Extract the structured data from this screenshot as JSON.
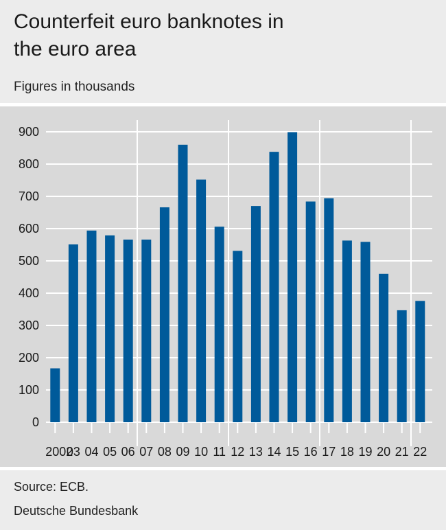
{
  "header": {
    "title_line1": "Counterfeit euro banknotes in",
    "title_line2": "the euro area",
    "subtitle": "Figures in thousands"
  },
  "footer": {
    "source": "Source: ECB.",
    "publisher": "Deutsche Bundesbank"
  },
  "colors": {
    "bar": "#005a9a",
    "plot_background": "#d9d9d9",
    "page_background": "#ececec",
    "gridline": "#ffffff"
  },
  "chart_data": {
    "type": "bar",
    "title": "Counterfeit euro banknotes in the euro area",
    "subtitle": "Figures in thousands",
    "xlabel": "",
    "ylabel": "",
    "categories": [
      "2002",
      "03",
      "04",
      "05",
      "06",
      "07",
      "08",
      "09",
      "10",
      "11",
      "12",
      "13",
      "14",
      "15",
      "16",
      "17",
      "18",
      "19",
      "20",
      "21",
      "22"
    ],
    "values": [
      167,
      551,
      594,
      579,
      566,
      566,
      666,
      860,
      752,
      606,
      531,
      670,
      838,
      899,
      684,
      694,
      563,
      559,
      460,
      347,
      376
    ],
    "ylim": [
      0,
      900
    ],
    "yticks": [
      0,
      100,
      200,
      300,
      400,
      500,
      600,
      700,
      800,
      900
    ],
    "grid": true,
    "vertical_separators_after": [
      "06",
      "11",
      "16",
      "21"
    ]
  }
}
